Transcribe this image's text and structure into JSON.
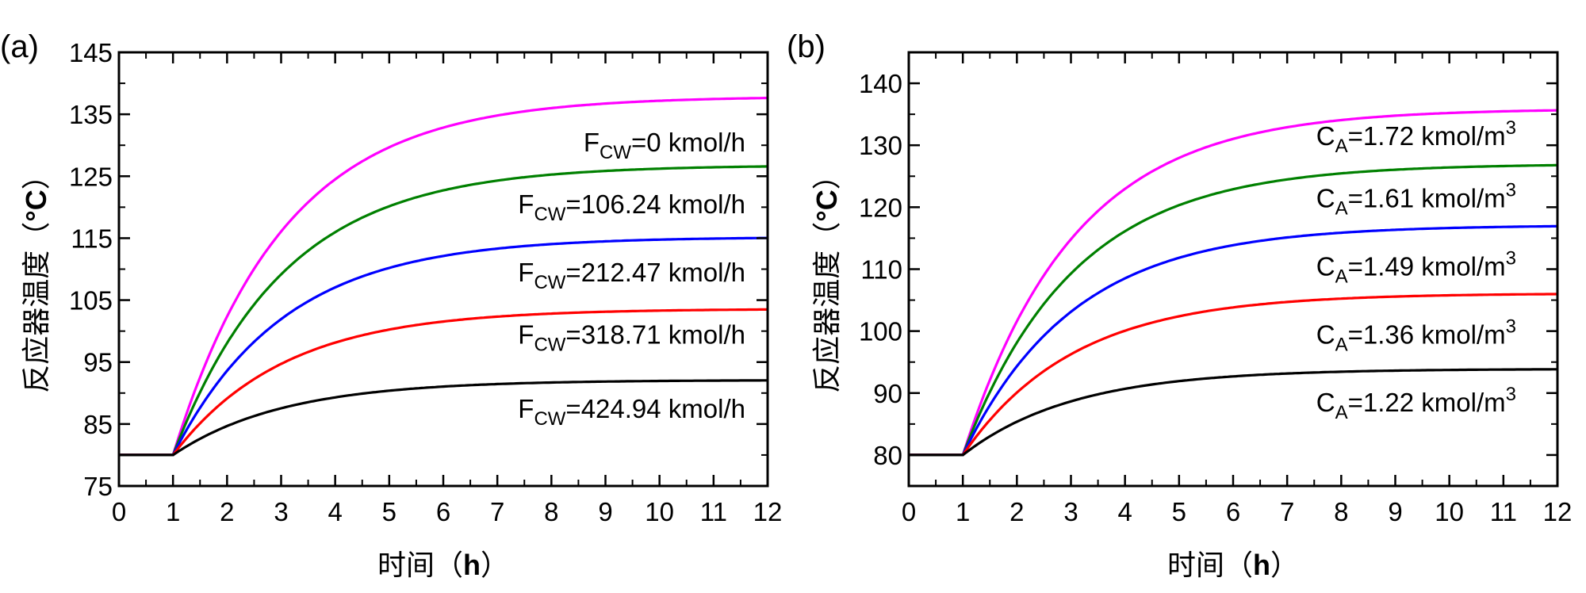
{
  "chart_data": [
    {
      "type": "line",
      "panel_label": "(a)",
      "xlabel": "时间",
      "xlabel_unit": "h",
      "ylabel": "反应器温度",
      "ylabel_unit": "°C",
      "xlim": [
        0,
        12
      ],
      "ylim": [
        75,
        145
      ],
      "xticks": [
        0,
        1,
        2,
        3,
        4,
        5,
        6,
        7,
        8,
        9,
        10,
        11,
        12
      ],
      "yticks": [
        75,
        85,
        95,
        105,
        115,
        125,
        135,
        145
      ],
      "step_time": 1,
      "initial_value": 80,
      "series": [
        {
          "name": "F_CW=0 kmol/h",
          "label_main": "F",
          "label_sub": "CW",
          "label_rest": "=0 kmol/h",
          "label_sup": "",
          "color": "#ff00ff",
          "final": 137.9
        },
        {
          "name": "F_CW=106.24 kmol/h",
          "label_main": "F",
          "label_sub": "CW",
          "label_rest": "=106.24 kmol/h",
          "label_sup": "",
          "color": "#008000",
          "final": 126.8
        },
        {
          "name": "F_CW=212.47 kmol/h",
          "label_main": "F",
          "label_sub": "CW",
          "label_rest": "=212.47 kmol/h",
          "label_sup": "",
          "color": "#0000ff",
          "final": 115.2
        },
        {
          "name": "F_CW=318.71 kmol/h",
          "label_main": "F",
          "label_sub": "CW",
          "label_rest": "=318.71 kmol/h",
          "label_sup": "",
          "color": "#ff0000",
          "final": 103.6
        },
        {
          "name": "F_CW=424.94 kmol/h",
          "label_main": "F",
          "label_sub": "CW",
          "label_rest": "=424.94 kmol/h",
          "label_sup": "",
          "color": "#000000",
          "final": 92.1
        }
      ],
      "annotation_positions": [
        129,
        119,
        108,
        98,
        86
      ]
    },
    {
      "type": "line",
      "panel_label": "(b)",
      "xlabel": "时间",
      "xlabel_unit": "h",
      "ylabel": "反应器温度",
      "ylabel_unit": "°C",
      "xlim": [
        0,
        12
      ],
      "ylim": [
        75,
        145
      ],
      "xticks": [
        0,
        1,
        2,
        3,
        4,
        5,
        6,
        7,
        8,
        9,
        10,
        11,
        12
      ],
      "yticks": [
        80,
        90,
        100,
        110,
        120,
        130,
        140
      ],
      "step_time": 1,
      "initial_value": 80,
      "series": [
        {
          "name": "C_A=1.72 kmol/m3",
          "label_main": "C",
          "label_sub": "A",
          "label_rest": "=1.72 kmol/m",
          "label_sup": "3",
          "color": "#ff00ff",
          "final": 135.9
        },
        {
          "name": "C_A=1.61 kmol/m3",
          "label_main": "C",
          "label_sub": "A",
          "label_rest": "=1.61 kmol/m",
          "label_sup": "3",
          "color": "#008000",
          "final": 127.0
        },
        {
          "name": "C_A=1.49 kmol/m3",
          "label_main": "C",
          "label_sub": "A",
          "label_rest": "=1.49 kmol/m",
          "label_sup": "3",
          "color": "#0000ff",
          "final": 117.1
        },
        {
          "name": "C_A=1.36 kmol/m3",
          "label_main": "C",
          "label_sub": "A",
          "label_rest": "=1.36 kmol/m",
          "label_sup": "3",
          "color": "#ff0000",
          "final": 106.1
        },
        {
          "name": "C_A=1.22 kmol/m3",
          "label_main": "C",
          "label_sub": "A",
          "label_rest": "=1.22 kmol/m",
          "label_sup": "3",
          "color": "#000000",
          "final": 93.9
        }
      ],
      "annotation_positions": [
        130,
        120,
        109,
        98,
        87
      ]
    }
  ]
}
